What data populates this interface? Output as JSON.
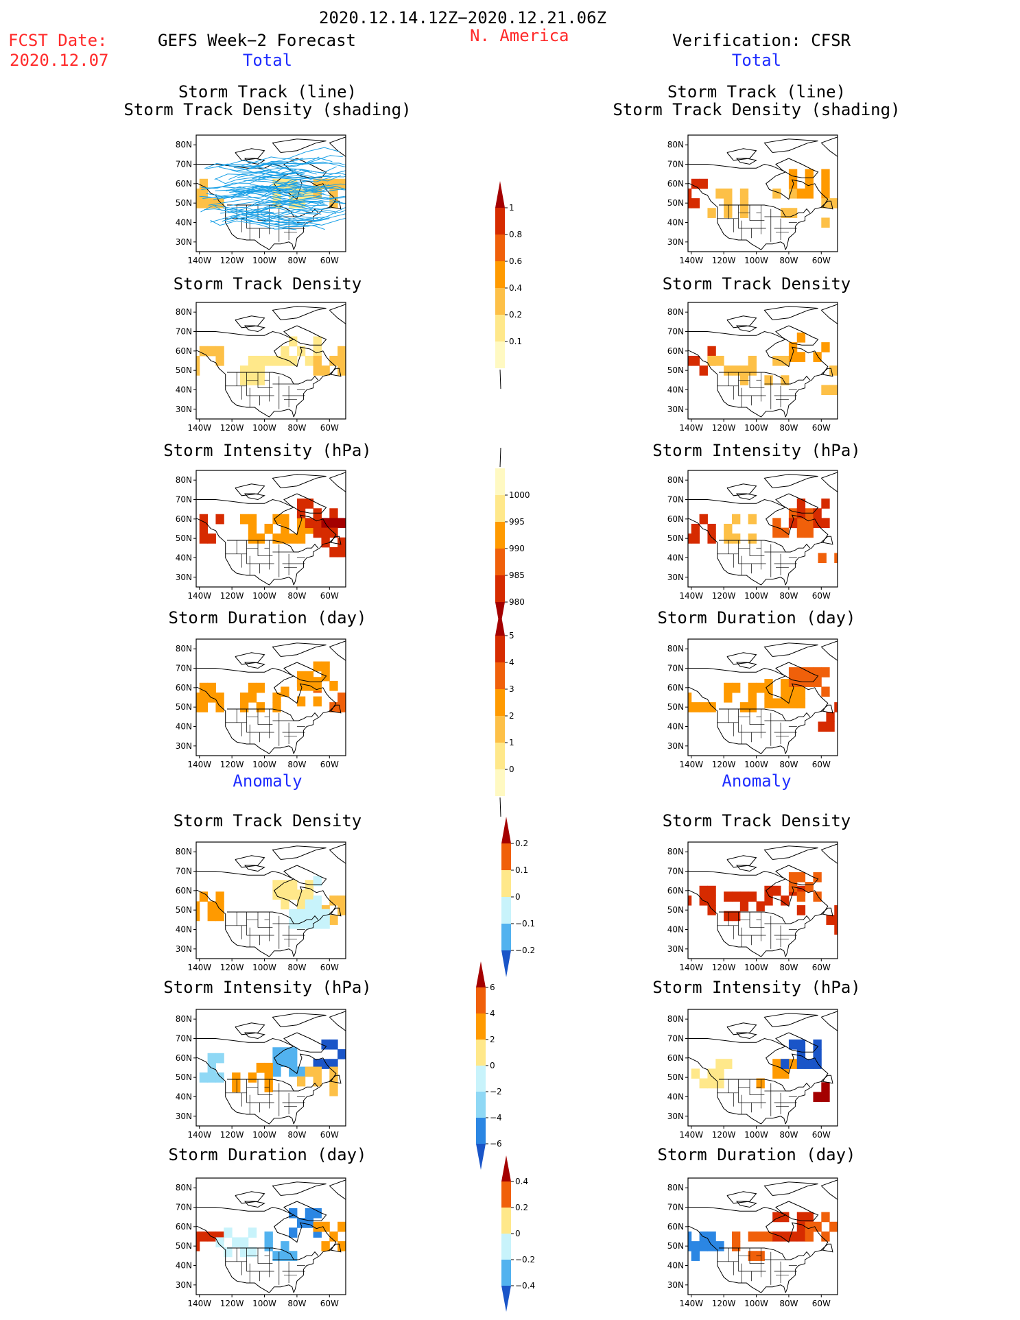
{
  "header": {
    "fcst_label": "FCST Date:",
    "fcst_date": "2020.12.07",
    "date_range": "2020.12.14.12Z−2020.12.21.06Z",
    "left_title": "GEFS Week−2 Forecast",
    "region": "N. America",
    "right_title": "Verification: CFSR",
    "total_left": "Total",
    "total_right": "Total",
    "anomaly_left": "Anomaly",
    "anomaly_right": "Anomaly"
  },
  "axes": {
    "lat_labels": [
      "80N",
      "70N",
      "60N",
      "50N",
      "40N",
      "30N"
    ],
    "lon_labels": [
      "140W",
      "120W",
      "100W",
      "80W",
      "60W"
    ]
  },
  "colors": {
    "track_line": "#1aa0e6",
    "pos": [
      "#fff9c2",
      "#ffe88a",
      "#fdc047",
      "#ff9a00",
      "#f0600a",
      "#d62b00",
      "#a40000"
    ],
    "neg": [
      "#c8f3fb",
      "#8fd8f5",
      "#52b2ef",
      "#2b86e3",
      "#1a55c8"
    ]
  },
  "panels": {
    "left": [
      {
        "title1": "Storm Track (line)",
        "title2": "Storm Track Density (shading)"
      },
      {
        "title1": "Storm Track Density"
      },
      {
        "title1": "Storm Intensity (hPa)"
      },
      {
        "title1": "Storm Duration (day)"
      },
      {
        "title1": "Storm Track Density"
      },
      {
        "title1": "Storm Intensity (hPa)"
      },
      {
        "title1": "Storm Duration (day)"
      }
    ],
    "right": [
      {
        "title1": "Storm Track (line)",
        "title2": "Storm Track Density (shading)"
      },
      {
        "title1": "Storm Track Density"
      },
      {
        "title1": "Storm Intensity (hPa)"
      },
      {
        "title1": "Storm Duration (day)"
      },
      {
        "title1": "Storm Track Density"
      },
      {
        "title1": "Storm Intensity (hPa)"
      },
      {
        "title1": "Storm Duration (day)"
      }
    ]
  },
  "colorbars": [
    {
      "labels": [
        "1",
        "0.8",
        "0.6",
        "0.4",
        "0.2",
        "0.1"
      ],
      "colors": [
        6,
        5,
        4,
        3,
        2,
        1,
        0
      ],
      "tri_bottom": "none"
    },
    {
      "labels": [
        "1000",
        "995",
        "990",
        "985",
        "980"
      ],
      "colors": [
        0,
        1,
        3,
        4,
        5,
        6
      ],
      "tri_top": "none",
      "reverse": true
    },
    {
      "labels": [
        "5",
        "4",
        "3",
        "2",
        "1",
        "0"
      ],
      "colors": [
        6,
        5,
        4,
        3,
        2,
        1,
        0
      ],
      "tri_bottom": "none"
    },
    {
      "labels": [
        "0.2",
        "0.1",
        "0",
        "−0.1",
        "−0.2"
      ],
      "diverging": true
    },
    {
      "labels": [
        "6",
        "4",
        "2",
        "0",
        "−2",
        "−4",
        "−6"
      ],
      "diverging": true
    },
    {
      "labels": [
        "0.4",
        "0.2",
        "0",
        "−0.2",
        "−0.4"
      ],
      "diverging": true
    }
  ],
  "chart_data": {
    "type": "heatmap",
    "title": "2020.12.14.12Z−2020.12.21.06Z",
    "region": "N. America",
    "lon_range": [
      "140W",
      "50W"
    ],
    "lat_range": [
      "25N",
      "85N"
    ],
    "colorbar_levels": {
      "density_total": [
        0.1,
        0.2,
        0.4,
        0.6,
        0.8,
        1
      ],
      "intensity_total_hPa": [
        980,
        985,
        990,
        995,
        1000
      ],
      "duration_total_day": [
        0,
        1,
        2,
        3,
        4,
        5
      ],
      "density_anomaly": [
        -0.2,
        -0.1,
        0,
        0.1,
        0.2
      ],
      "intensity_anomaly_hPa": [
        -6,
        -4,
        -2,
        0,
        2,
        4,
        6
      ],
      "duration_anomaly_day": [
        -0.4,
        -0.2,
        0,
        0.2,
        0.4
      ]
    },
    "fields": {
      "gefs_density": [
        {
          "lon": -140,
          "lat": 55,
          "level": 2
        },
        {
          "lon": -135,
          "lat": 50,
          "level": 2
        },
        {
          "lon": -135,
          "lat": 55,
          "level": 1
        },
        {
          "lon": -105,
          "lat": 50,
          "level": 1
        },
        {
          "lon": -95,
          "lat": 50,
          "level": 1
        },
        {
          "lon": -85,
          "lat": 55,
          "level": 1
        },
        {
          "lon": -80,
          "lat": 60,
          "level": 1
        },
        {
          "lon": -75,
          "lat": 65,
          "level": 1
        },
        {
          "lon": -70,
          "lat": 60,
          "level": 1
        },
        {
          "lon": -60,
          "lat": 55,
          "level": 2
        },
        {
          "lon": -55,
          "lat": 60,
          "level": 2
        },
        {
          "lon": -60,
          "lat": 50,
          "level": 1
        }
      ],
      "cfsr_density": [
        {
          "lon": -140,
          "lat": 55,
          "level": 5
        },
        {
          "lon": -135,
          "lat": 55,
          "level": 3
        },
        {
          "lon": -120,
          "lat": 50,
          "level": 2
        },
        {
          "lon": -100,
          "lat": 50,
          "level": 2
        },
        {
          "lon": -85,
          "lat": 55,
          "level": 2
        },
        {
          "lon": -75,
          "lat": 60,
          "level": 3
        },
        {
          "lon": -70,
          "lat": 65,
          "level": 3
        },
        {
          "lon": -55,
          "lat": 50,
          "level": 2
        },
        {
          "lon": -50,
          "lat": 45,
          "level": 2
        }
      ]
    }
  }
}
